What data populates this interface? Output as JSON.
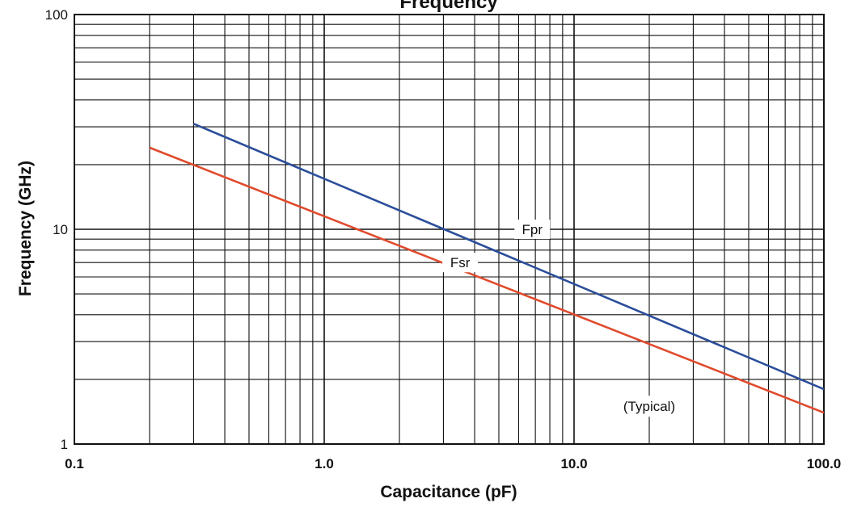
{
  "chart_data": {
    "type": "line",
    "title": "Frequency",
    "xlabel": "Capacitance (pF)",
    "ylabel": "Frequency (GHz)",
    "x_scale": "log",
    "y_scale": "log",
    "xlim": [
      0.1,
      100
    ],
    "ylim": [
      1,
      100
    ],
    "x_tick_labels": [
      {
        "value": 0.1,
        "label": "0.1"
      },
      {
        "value": 1,
        "label": "1.0"
      },
      {
        "value": 10,
        "label": "10.0"
      },
      {
        "value": 100,
        "label": "100.0"
      }
    ],
    "y_tick_labels": [
      {
        "value": 1,
        "label": "1"
      },
      {
        "value": 10,
        "label": "10"
      },
      {
        "value": 100,
        "label": "100"
      }
    ],
    "grid": true,
    "series": [
      {
        "name": "Fpr",
        "color": "#2b4e9a",
        "x": [
          0.3,
          100
        ],
        "y": [
          31,
          1.8
        ],
        "label_at": [
          6.8,
          10
        ]
      },
      {
        "name": "Fsr",
        "color": "#e04a2c",
        "x": [
          0.2,
          100
        ],
        "y": [
          24,
          1.4
        ],
        "label_at": [
          3.5,
          7
        ]
      }
    ],
    "annotation": {
      "text": "(Typical)",
      "at": [
        20,
        1.5
      ]
    }
  }
}
